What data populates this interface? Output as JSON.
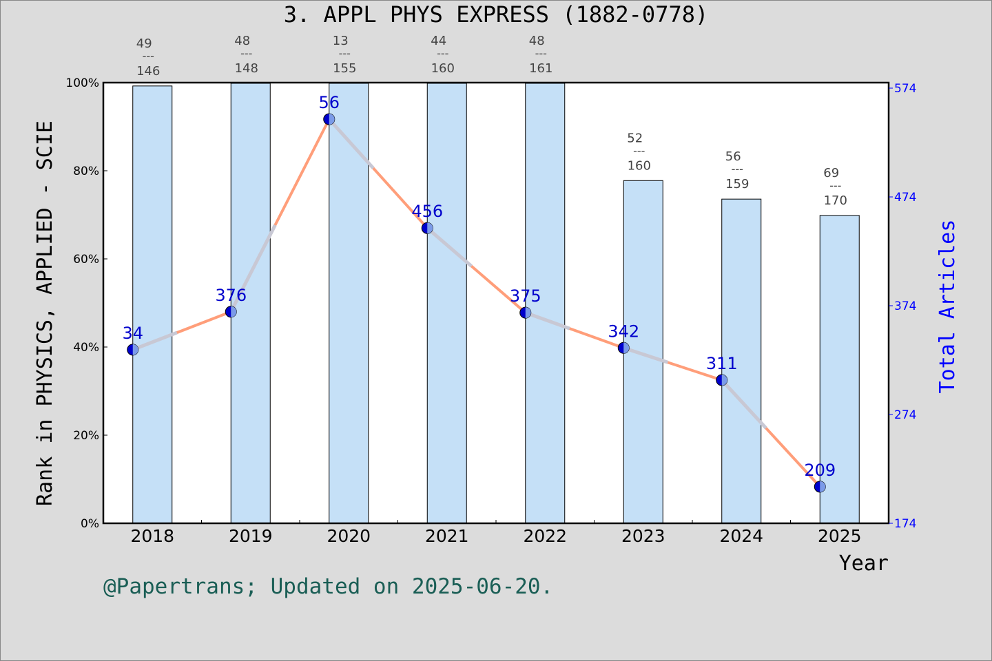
{
  "chart_data": {
    "type": "bar+line",
    "title": "3.  APPL PHYS EXPRESS  (1882-0778)",
    "xlabel": "Year",
    "ylabel": "Rank in PHYSICS, APPLIED - SCIE",
    "y2label": "Total Articles",
    "categories": [
      "2018",
      "2019",
      "2020",
      "2021",
      "2022",
      "2023",
      "2024",
      "2025"
    ],
    "ylim": [
      0,
      100
    ],
    "yticks": [
      "0%",
      "20%",
      "40%",
      "60%",
      "80%",
      "100%"
    ],
    "y2lim": [
      174,
      574
    ],
    "y2ticks": [
      "174",
      "274",
      "374",
      "474",
      "574"
    ],
    "bar_values": [
      576,
      587,
      588,
      591,
      594,
      489,
      472,
      457
    ],
    "line_percent": [
      39.4,
      48.0,
      91.7,
      67.0,
      47.8,
      39.8,
      32.5,
      8.3
    ],
    "point_labels": [
      "34",
      "376",
      "56",
      "456",
      "375",
      "342",
      "311",
      "209"
    ],
    "rank_labels": [
      {
        "rank": "49",
        "total": "146"
      },
      {
        "rank": "48",
        "total": "148"
      },
      {
        "rank": "13",
        "total": "155"
      },
      {
        "rank": "44",
        "total": "160"
      },
      {
        "rank": "48",
        "total": "161"
      },
      {
        "rank": "52",
        "total": "160"
      },
      {
        "rank": "56",
        "total": "159"
      },
      {
        "rank": "69",
        "total": "170"
      }
    ],
    "separator": "---",
    "grid": false,
    "colors": {
      "bar": "#c5e0f7",
      "line": "#ff9e7a",
      "line_overlay": "#c8c8d4",
      "point": "#0000cc",
      "point_half": "#7b9be8",
      "right_axis": "#0000ff",
      "footer": "#1a5e55"
    }
  },
  "footer": "@Papertrans; Updated on 2025-06-20."
}
